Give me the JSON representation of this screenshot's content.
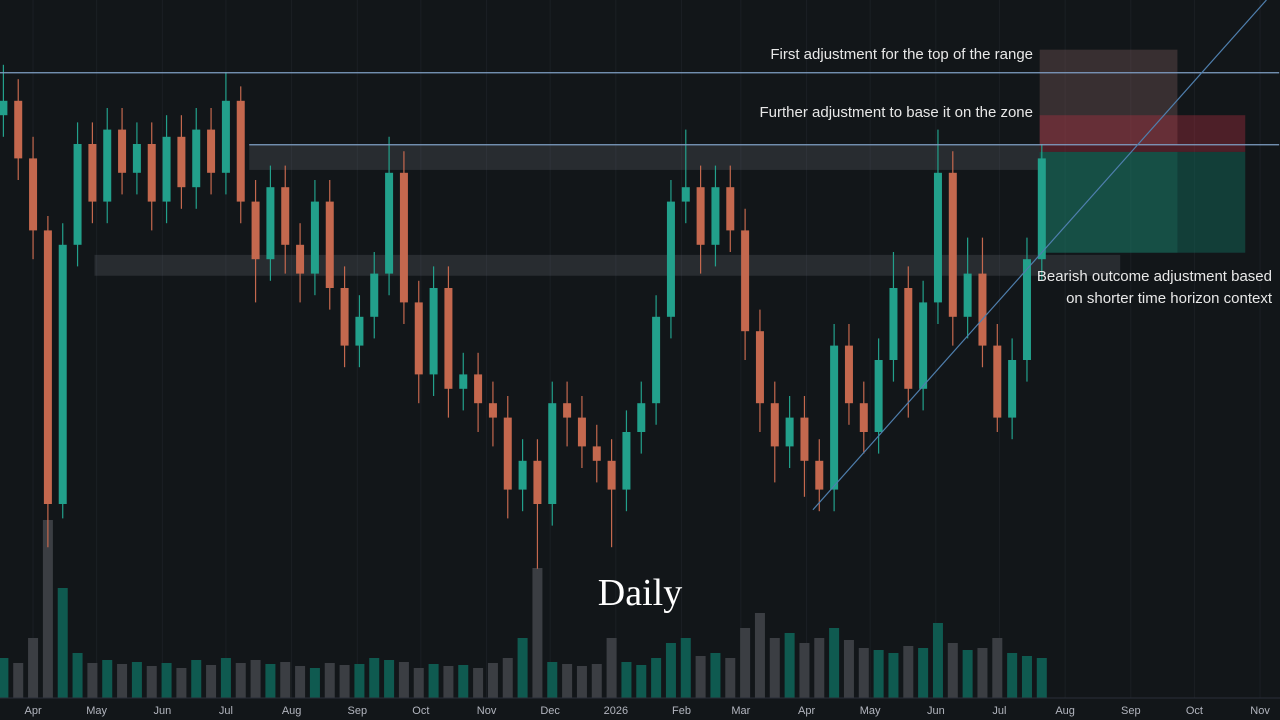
{
  "chart_data": {
    "type": "candlestick",
    "title": "Daily",
    "annotations": [
      "First adjustment for the top of the range",
      "Further adjustment to base it on the zone",
      "Bearish outcome adjustment based",
      "on shorter time horizon context"
    ],
    "x": [
      -14,
      -7,
      0,
      7,
      14,
      21,
      28,
      35,
      42,
      49,
      56,
      63,
      70,
      77,
      84,
      91,
      98,
      105,
      112,
      119,
      126,
      133,
      140,
      147,
      154,
      161,
      168,
      175,
      182,
      189,
      196,
      203,
      210,
      217,
      224,
      231,
      238,
      245,
      252,
      259,
      266,
      273,
      280,
      287,
      294,
      301,
      308,
      315,
      322,
      329,
      336,
      343,
      350,
      357,
      364,
      371,
      378,
      385,
      392,
      399,
      406,
      413,
      420,
      427,
      434,
      441,
      448,
      455,
      462,
      469,
      476
    ],
    "open": [
      84,
      86,
      78,
      68,
      30,
      66,
      80,
      72,
      82,
      76,
      80,
      72,
      81,
      74,
      82,
      76,
      86,
      72,
      64,
      74,
      66,
      62,
      72,
      60,
      52,
      56,
      62,
      76,
      58,
      48,
      60,
      46,
      48,
      44,
      42,
      32,
      36,
      30,
      44,
      42,
      38,
      36,
      32,
      40,
      44,
      56,
      72,
      74,
      66,
      74,
      68,
      54,
      44,
      38,
      42,
      36,
      32,
      52,
      44,
      40,
      50,
      60,
      46,
      58,
      76,
      56,
      62,
      52,
      42,
      50,
      64
    ],
    "high": [
      91,
      89,
      81,
      70,
      69,
      83,
      83,
      85,
      85,
      83,
      83,
      84,
      84,
      85,
      85,
      90,
      88,
      75,
      77,
      77,
      69,
      75,
      75,
      63,
      59,
      65,
      81,
      79,
      61,
      63,
      63,
      51,
      51,
      47,
      45,
      39,
      39,
      47,
      47,
      45,
      41,
      39,
      43,
      47,
      59,
      75,
      82,
      77,
      77,
      77,
      71,
      57,
      47,
      45,
      45,
      39,
      55,
      55,
      47,
      53,
      65,
      63,
      61,
      82,
      79,
      67,
      67,
      55,
      53,
      67,
      80
    ],
    "low": [
      81,
      75,
      64,
      24,
      28,
      63,
      69,
      69,
      73,
      73,
      68,
      69,
      71,
      71,
      73,
      73,
      69,
      58,
      61,
      62,
      58,
      59,
      57,
      49,
      49,
      53,
      59,
      55,
      44,
      45,
      42,
      43,
      40,
      38,
      28,
      29,
      21,
      27,
      38,
      35,
      33,
      24,
      29,
      37,
      41,
      53,
      69,
      62,
      63,
      65,
      50,
      40,
      33,
      35,
      31,
      29,
      29,
      41,
      37,
      37,
      47,
      42,
      43,
      55,
      52,
      53,
      49,
      40,
      39,
      47,
      61
    ],
    "close": [
      86,
      78,
      68,
      30,
      66,
      80,
      72,
      82,
      76,
      80,
      72,
      81,
      74,
      82,
      76,
      86,
      72,
      64,
      74,
      66,
      62,
      72,
      60,
      52,
      56,
      62,
      76,
      58,
      48,
      60,
      46,
      48,
      44,
      42,
      32,
      36,
      30,
      44,
      42,
      38,
      36,
      32,
      40,
      44,
      56,
      72,
      74,
      66,
      74,
      68,
      54,
      44,
      38,
      42,
      36,
      32,
      52,
      44,
      40,
      50,
      60,
      46,
      58,
      76,
      56,
      62,
      52,
      42,
      50,
      64,
      78
    ],
    "volume": [
      40,
      35,
      60,
      178,
      110,
      45,
      35,
      38,
      34,
      36,
      32,
      35,
      30,
      38,
      33,
      40,
      35,
      38,
      34,
      36,
      32,
      30,
      35,
      33,
      34,
      40,
      38,
      36,
      30,
      34,
      32,
      33,
      30,
      35,
      40,
      60,
      130,
      36,
      34,
      32,
      34,
      60,
      36,
      33,
      40,
      55,
      60,
      42,
      45,
      40,
      70,
      85,
      60,
      65,
      55,
      60,
      70,
      58,
      50,
      48,
      45,
      52,
      50,
      75,
      55,
      48,
      50,
      60,
      45,
      42,
      40
    ],
    "up_color": "#22a08b",
    "down_color": "#c4684e",
    "volume_up_color": "#0f5a50",
    "volume_down_color": "#3b3e43",
    "xlim": [
      -15.6,
      588.4
    ],
    "ylim": [
      0,
      100
    ],
    "volume_ylim": [
      0,
      300
    ],
    "xticks": [
      {
        "value": 0,
        "label": "Apr"
      },
      {
        "value": 30,
        "label": "May"
      },
      {
        "value": 61,
        "label": "Jun"
      },
      {
        "value": 91,
        "label": "Jul"
      },
      {
        "value": 122,
        "label": "Aug"
      },
      {
        "value": 153,
        "label": "Sep"
      },
      {
        "value": 183,
        "label": "Oct"
      },
      {
        "value": 214,
        "label": "Nov"
      },
      {
        "value": 244,
        "label": "Dec"
      },
      {
        "value": 275,
        "label": "2026"
      },
      {
        "value": 306,
        "label": "Feb"
      },
      {
        "value": 334,
        "label": "Mar"
      },
      {
        "value": 365,
        "label": "Apr"
      },
      {
        "value": 395,
        "label": "May"
      },
      {
        "value": 426,
        "label": "Jun"
      },
      {
        "value": 456,
        "label": "Jul"
      },
      {
        "value": 487,
        "label": "Aug"
      },
      {
        "value": 518,
        "label": "Sep"
      },
      {
        "value": 548,
        "label": "Oct"
      },
      {
        "value": 579,
        "label": "Nov"
      }
    ],
    "grid": true,
    "boxes": [
      {
        "x": [
          102,
          475
        ],
        "y": [
          76.4,
          79.9
        ],
        "color": "rgba(120,123,134,0.22)"
      },
      {
        "x": [
          29,
          513
        ],
        "y": [
          61.7,
          64.6
        ],
        "color": "rgba(120,123,134,0.22)"
      },
      {
        "x": [
          475,
          540
        ],
        "y": [
          79.9,
          93.1
        ],
        "color": "rgba(130,95,95,0.35)"
      },
      {
        "x": [
          475,
          572
        ],
        "y": [
          78.9,
          84.0
        ],
        "color": "rgba(190,50,70,0.35)"
      },
      {
        "x": [
          475,
          572
        ],
        "y": [
          64.9,
          78.9
        ],
        "color": "rgba(20,110,95,0.45)"
      },
      {
        "x": [
          475,
          540
        ],
        "y": [
          64.9,
          78.9
        ],
        "color": "rgba(40,150,125,0.2)"
      }
    ],
    "lines": [
      {
        "x": [
          -16,
          588
        ],
        "y": [
          89.9,
          89.9
        ],
        "color": "#7f9fc4"
      },
      {
        "x": [
          102,
          588
        ],
        "y": [
          79.9,
          79.9
        ],
        "color": "#7f9fc4"
      },
      {
        "x": [
          368,
          582
        ],
        "y": [
          29.2,
          100
        ],
        "color": "#4f7fae"
      }
    ]
  }
}
